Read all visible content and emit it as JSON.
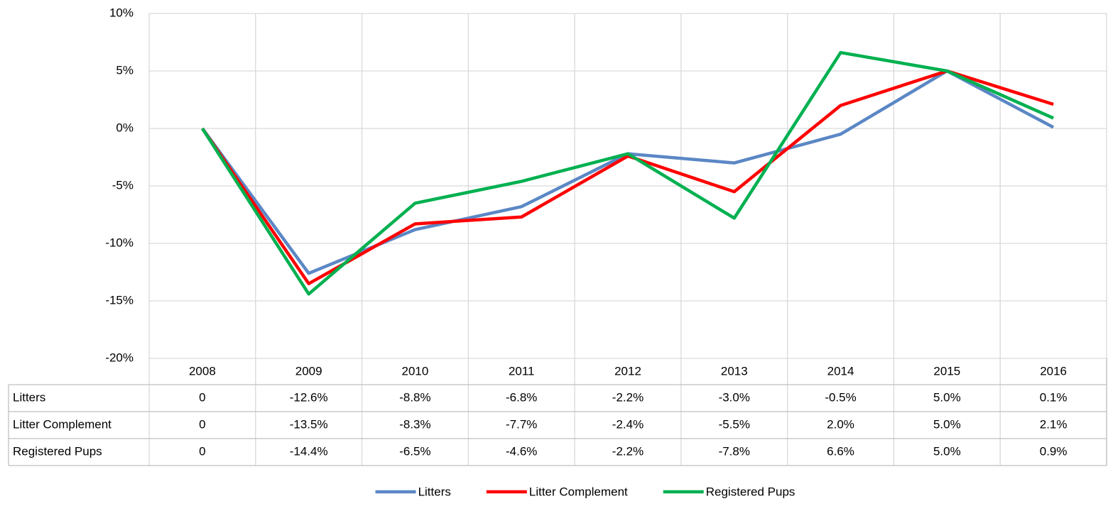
{
  "chart_data": {
    "type": "line",
    "categories": [
      "2008",
      "2009",
      "2010",
      "2011",
      "2012",
      "2013",
      "2014",
      "2015",
      "2016"
    ],
    "series": [
      {
        "name": "Litters",
        "color": "#5b87c5",
        "values": [
          0,
          -12.6,
          -8.8,
          -6.8,
          -2.2,
          -3.0,
          -0.5,
          5.0,
          0.1
        ],
        "value_labels": [
          "0",
          "-12.6%",
          "-8.8%",
          "-6.8%",
          "-2.2%",
          "-3.0%",
          "-0.5%",
          "5.0%",
          "0.1%"
        ]
      },
      {
        "name": "Litter Complement",
        "color": "#ff0000",
        "values": [
          0,
          -13.5,
          -8.3,
          -7.7,
          -2.4,
          -5.5,
          2.0,
          5.0,
          2.1
        ],
        "value_labels": [
          "0",
          "-13.5%",
          "-8.3%",
          "-7.7%",
          "-2.4%",
          "-5.5%",
          "2.0%",
          "5.0%",
          "2.1%"
        ]
      },
      {
        "name": "Registered Pups",
        "color": "#00b050",
        "values": [
          0,
          -14.4,
          -6.5,
          -4.6,
          -2.2,
          -7.8,
          6.6,
          5.0,
          0.9
        ],
        "value_labels": [
          "0",
          "-14.4%",
          "-6.5%",
          "-4.6%",
          "-2.2%",
          "-7.8%",
          "6.6%",
          "5.0%",
          "0.9%"
        ]
      }
    ],
    "ylim": [
      -20,
      10
    ],
    "yticks": [
      {
        "value": -20,
        "label": "-20%"
      },
      {
        "value": -15,
        "label": "-15%"
      },
      {
        "value": -10,
        "label": "-10%"
      },
      {
        "value": -5,
        "label": "-5%"
      },
      {
        "value": 0,
        "label": "0%"
      },
      {
        "value": 5,
        "label": "5%"
      },
      {
        "value": 10,
        "label": "10%"
      }
    ],
    "grid": true,
    "legend": "bottom"
  }
}
